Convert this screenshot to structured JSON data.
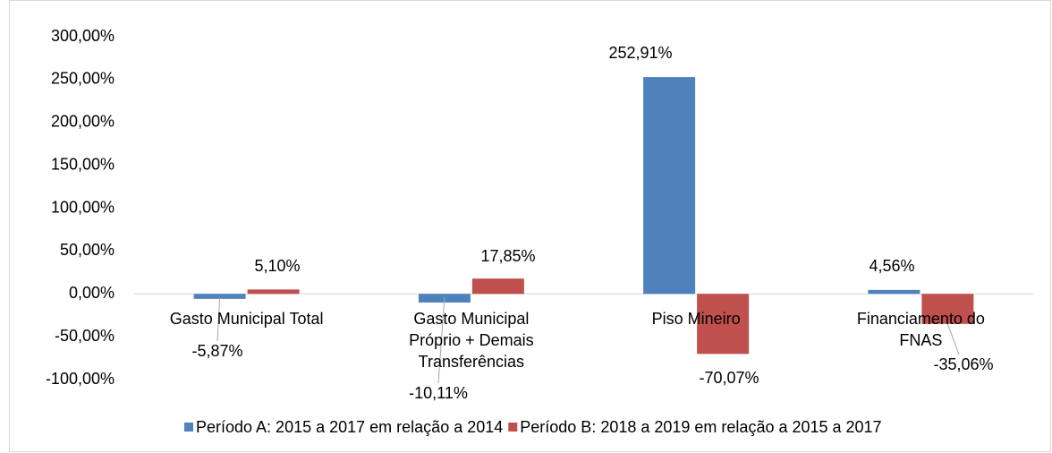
{
  "chart_data": {
    "type": "bar",
    "categories": [
      "Gasto Municipal Total",
      "Gasto Municipal\nPróprio + Demais\nTransferências",
      "Piso Mineiro",
      "Financiamento do\nFNAS"
    ],
    "series": [
      {
        "name": "Período A: 2015 a 2017 em relação a 2014",
        "color": "#4f81bd",
        "values": [
          -5.87,
          -10.11,
          252.91,
          4.56
        ],
        "value_labels": [
          "-5,87%",
          "-10,11%",
          "252,91%",
          "4,56%"
        ]
      },
      {
        "name": "Período B: 2018 a 2019 em relação a 2015 a 2017",
        "color": "#c0504d",
        "values": [
          5.1,
          17.85,
          -70.07,
          -35.06
        ],
        "value_labels": [
          "5,10%",
          "17,85%",
          "-70,07%",
          "-35,06%"
        ]
      }
    ],
    "ylim": [
      -100,
      300
    ],
    "yticks": [
      {
        "value": -100,
        "label": "-100,00%"
      },
      {
        "value": -50,
        "label": "-50,00%"
      },
      {
        "value": 0,
        "label": "0,00%"
      },
      {
        "value": 50,
        "label": "50,00%"
      },
      {
        "value": 100,
        "label": "100,00%"
      },
      {
        "value": 150,
        "label": "150,00%"
      },
      {
        "value": 200,
        "label": "200,00%"
      },
      {
        "value": 250,
        "label": "250,00%"
      },
      {
        "value": 300,
        "label": "300,00%"
      }
    ],
    "legend": "bottom"
  }
}
